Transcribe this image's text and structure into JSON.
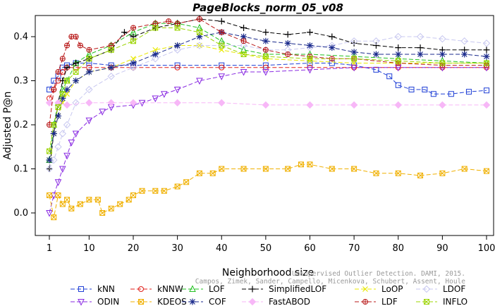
{
  "chart_data": {
    "type": "line",
    "title": "PageBlocks_norm_05_v08",
    "xlabel": "Neighborhood size",
    "ylabel": "Adjusted P@n",
    "xlim": [
      1,
      100
    ],
    "ylim": [
      -0.05,
      0.45
    ],
    "xticks": [
      1,
      10,
      20,
      30,
      40,
      50,
      60,
      70,
      80,
      90,
      100
    ],
    "yticks": [
      0.0,
      0.1,
      0.2,
      0.3,
      0.4
    ],
    "ytick_labels": [
      "0.0",
      "0.1",
      "0.2",
      "0.3",
      "0.4"
    ],
    "grid": false,
    "legend_position": "bottom",
    "watermark": [
      "Campos, Zimek, Sander, Campello, Micenkova, Schubert, Assent, Houle",
      "Unsupervised Outlier Detection. DAMI, 2015."
    ],
    "series": [
      {
        "name": "kNN",
        "color": "#1f3fd6",
        "marker": "square",
        "dash": "6,3",
        "points": [
          [
            1,
            0.28
          ],
          [
            2,
            0.3
          ],
          [
            3,
            0.31
          ],
          [
            4,
            0.33
          ],
          [
            5,
            0.335
          ],
          [
            7,
            0.34
          ],
          [
            10,
            0.34
          ],
          [
            15,
            0.335
          ],
          [
            20,
            0.335
          ],
          [
            30,
            0.335
          ],
          [
            40,
            0.335
          ],
          [
            50,
            0.335
          ],
          [
            60,
            0.34
          ],
          [
            65,
            0.34
          ],
          [
            70,
            0.335
          ],
          [
            75,
            0.325
          ],
          [
            78,
            0.31
          ],
          [
            80,
            0.29
          ],
          [
            83,
            0.28
          ],
          [
            86,
            0.28
          ],
          [
            88,
            0.27
          ],
          [
            92,
            0.27
          ],
          [
            96,
            0.275
          ],
          [
            100,
            0.278
          ]
        ]
      },
      {
        "name": "kNNW",
        "color": "#e0201b",
        "marker": "circle",
        "dash": "6,3",
        "points": [
          [
            1,
            0.26
          ],
          [
            2,
            0.28
          ],
          [
            3,
            0.3
          ],
          [
            4,
            0.32
          ],
          [
            5,
            0.33
          ],
          [
            7,
            0.33
          ],
          [
            10,
            0.33
          ],
          [
            15,
            0.33
          ],
          [
            20,
            0.33
          ],
          [
            30,
            0.33
          ],
          [
            40,
            0.33
          ],
          [
            50,
            0.33
          ],
          [
            60,
            0.33
          ],
          [
            70,
            0.33
          ],
          [
            80,
            0.33
          ],
          [
            90,
            0.33
          ],
          [
            100,
            0.33
          ]
        ]
      },
      {
        "name": "LOF",
        "color": "#22c021",
        "marker": "triangle-up",
        "dash": "6,3",
        "points": [
          [
            1,
            0.12
          ],
          [
            2,
            0.2
          ],
          [
            3,
            0.25
          ],
          [
            4,
            0.28
          ],
          [
            5,
            0.3
          ],
          [
            7,
            0.34
          ],
          [
            10,
            0.36
          ],
          [
            15,
            0.38
          ],
          [
            20,
            0.41
          ],
          [
            25,
            0.43
          ],
          [
            30,
            0.43
          ],
          [
            35,
            0.42
          ],
          [
            40,
            0.39
          ],
          [
            45,
            0.37
          ],
          [
            50,
            0.36
          ],
          [
            60,
            0.36
          ],
          [
            70,
            0.355
          ],
          [
            80,
            0.35
          ],
          [
            90,
            0.345
          ],
          [
            100,
            0.34
          ]
        ]
      },
      {
        "name": "SimplifiedLOF",
        "color": "#000000",
        "marker": "plus",
        "dash": "6,3",
        "points": [
          [
            1,
            0.1
          ],
          [
            2,
            0.18
          ],
          [
            3,
            0.25
          ],
          [
            4,
            0.3
          ],
          [
            5,
            0.33
          ],
          [
            7,
            0.34
          ],
          [
            10,
            0.35
          ],
          [
            15,
            0.37
          ],
          [
            18,
            0.41
          ],
          [
            20,
            0.4
          ],
          [
            25,
            0.42
          ],
          [
            30,
            0.43
          ],
          [
            35,
            0.44
          ],
          [
            40,
            0.435
          ],
          [
            45,
            0.42
          ],
          [
            50,
            0.41
          ],
          [
            55,
            0.405
          ],
          [
            60,
            0.41
          ],
          [
            65,
            0.4
          ],
          [
            70,
            0.385
          ],
          [
            75,
            0.38
          ],
          [
            80,
            0.375
          ],
          [
            85,
            0.375
          ],
          [
            90,
            0.37
          ],
          [
            95,
            0.37
          ],
          [
            100,
            0.37
          ]
        ]
      },
      {
        "name": "LoOP",
        "color": "#e8e800",
        "marker": "x",
        "dash": "6,3",
        "points": [
          [
            1,
            0.12
          ],
          [
            2,
            0.18
          ],
          [
            3,
            0.22
          ],
          [
            4,
            0.25
          ],
          [
            5,
            0.27
          ],
          [
            7,
            0.3
          ],
          [
            10,
            0.32
          ],
          [
            15,
            0.33
          ],
          [
            20,
            0.35
          ],
          [
            25,
            0.37
          ],
          [
            30,
            0.38
          ],
          [
            35,
            0.38
          ],
          [
            40,
            0.37
          ],
          [
            45,
            0.36
          ],
          [
            50,
            0.35
          ],
          [
            60,
            0.345
          ],
          [
            70,
            0.34
          ],
          [
            80,
            0.34
          ],
          [
            90,
            0.34
          ],
          [
            100,
            0.34
          ]
        ]
      },
      {
        "name": "LDOF",
        "color": "#c8c8f0",
        "marker": "diamond",
        "dash": "6,3",
        "points": [
          [
            1,
            0.1
          ],
          [
            2,
            0.12
          ],
          [
            3,
            0.15
          ],
          [
            4,
            0.18
          ],
          [
            5,
            0.2
          ],
          [
            7,
            0.25
          ],
          [
            10,
            0.28
          ],
          [
            15,
            0.31
          ],
          [
            20,
            0.33
          ],
          [
            25,
            0.35
          ],
          [
            30,
            0.37
          ],
          [
            35,
            0.38
          ],
          [
            40,
            0.38
          ],
          [
            45,
            0.38
          ],
          [
            50,
            0.37
          ],
          [
            55,
            0.37
          ],
          [
            60,
            0.375
          ],
          [
            65,
            0.38
          ],
          [
            70,
            0.39
          ],
          [
            75,
            0.39
          ],
          [
            80,
            0.4
          ],
          [
            85,
            0.4
          ],
          [
            90,
            0.395
          ],
          [
            95,
            0.39
          ],
          [
            100,
            0.385
          ]
        ]
      },
      {
        "name": "ODIN",
        "color": "#8a2be2",
        "marker": "triangle-down",
        "dash": "6,3",
        "points": [
          [
            1,
            0.0
          ],
          [
            2,
            0.04
          ],
          [
            3,
            0.07
          ],
          [
            4,
            0.1
          ],
          [
            5,
            0.13
          ],
          [
            6,
            0.16
          ],
          [
            7,
            0.18
          ],
          [
            10,
            0.21
          ],
          [
            13,
            0.23
          ],
          [
            15,
            0.24
          ],
          [
            20,
            0.245
          ],
          [
            22,
            0.25
          ],
          [
            25,
            0.26
          ],
          [
            27,
            0.27
          ],
          [
            30,
            0.28
          ],
          [
            35,
            0.3
          ],
          [
            40,
            0.31
          ],
          [
            45,
            0.32
          ],
          [
            50,
            0.32
          ],
          [
            60,
            0.325
          ],
          [
            70,
            0.33
          ],
          [
            80,
            0.33
          ],
          [
            90,
            0.33
          ],
          [
            100,
            0.33
          ]
        ]
      },
      {
        "name": "KDEOS",
        "color": "#f0b000",
        "marker": "square-x",
        "dash": "6,3",
        "points": [
          [
            1,
            0.04
          ],
          [
            2,
            -0.01
          ],
          [
            3,
            0.04
          ],
          [
            4,
            0.02
          ],
          [
            5,
            0.03
          ],
          [
            6,
            0.01
          ],
          [
            8,
            0.02
          ],
          [
            10,
            0.03
          ],
          [
            12,
            0.03
          ],
          [
            13,
            0.0
          ],
          [
            15,
            0.01
          ],
          [
            17,
            0.02
          ],
          [
            19,
            0.03
          ],
          [
            20,
            0.04
          ],
          [
            22,
            0.05
          ],
          [
            25,
            0.05
          ],
          [
            27,
            0.05
          ],
          [
            30,
            0.06
          ],
          [
            32,
            0.07
          ],
          [
            35,
            0.09
          ],
          [
            38,
            0.09
          ],
          [
            40,
            0.1
          ],
          [
            45,
            0.1
          ],
          [
            50,
            0.1
          ],
          [
            55,
            0.1
          ],
          [
            58,
            0.11
          ],
          [
            60,
            0.11
          ],
          [
            65,
            0.1
          ],
          [
            70,
            0.1
          ],
          [
            75,
            0.09
          ],
          [
            80,
            0.09
          ],
          [
            85,
            0.085
          ],
          [
            90,
            0.09
          ],
          [
            95,
            0.1
          ],
          [
            100,
            0.095
          ]
        ]
      },
      {
        "name": "COF",
        "color": "#1a2a8c",
        "marker": "asterisk",
        "dash": "6,3",
        "points": [
          [
            1,
            0.12
          ],
          [
            2,
            0.18
          ],
          [
            3,
            0.22
          ],
          [
            4,
            0.26
          ],
          [
            5,
            0.28
          ],
          [
            7,
            0.3
          ],
          [
            10,
            0.32
          ],
          [
            15,
            0.33
          ],
          [
            20,
            0.34
          ],
          [
            25,
            0.36
          ],
          [
            30,
            0.38
          ],
          [
            35,
            0.4
          ],
          [
            40,
            0.41
          ],
          [
            45,
            0.4
          ],
          [
            50,
            0.39
          ],
          [
            55,
            0.385
          ],
          [
            60,
            0.38
          ],
          [
            65,
            0.375
          ],
          [
            70,
            0.365
          ],
          [
            75,
            0.36
          ],
          [
            80,
            0.36
          ],
          [
            85,
            0.36
          ],
          [
            90,
            0.36
          ],
          [
            95,
            0.36
          ],
          [
            100,
            0.355
          ]
        ]
      },
      {
        "name": "FastABOD",
        "color": "#f7b7f7",
        "marker": "diamond-filled",
        "dash": "6,3",
        "points": [
          [
            1,
            0.25
          ],
          [
            3,
            0.25
          ],
          [
            5,
            0.245
          ],
          [
            10,
            0.25
          ],
          [
            15,
            0.25
          ],
          [
            20,
            0.25
          ],
          [
            30,
            0.25
          ],
          [
            40,
            0.25
          ],
          [
            50,
            0.245
          ],
          [
            60,
            0.245
          ],
          [
            70,
            0.245
          ],
          [
            80,
            0.245
          ],
          [
            90,
            0.245
          ],
          [
            100,
            0.245
          ]
        ]
      },
      {
        "name": "LDF",
        "color": "#b81818",
        "marker": "circle-plus",
        "dash": "6,3",
        "points": [
          [
            1,
            0.2
          ],
          [
            2,
            0.28
          ],
          [
            3,
            0.32
          ],
          [
            4,
            0.35
          ],
          [
            5,
            0.38
          ],
          [
            6,
            0.4
          ],
          [
            7,
            0.4
          ],
          [
            8,
            0.38
          ],
          [
            10,
            0.37
          ],
          [
            15,
            0.38
          ],
          [
            20,
            0.42
          ],
          [
            25,
            0.43
          ],
          [
            28,
            0.435
          ],
          [
            30,
            0.43
          ],
          [
            35,
            0.44
          ],
          [
            40,
            0.41
          ],
          [
            45,
            0.39
          ],
          [
            50,
            0.37
          ],
          [
            55,
            0.36
          ],
          [
            60,
            0.355
          ],
          [
            65,
            0.35
          ],
          [
            70,
            0.35
          ],
          [
            80,
            0.34
          ],
          [
            90,
            0.335
          ],
          [
            100,
            0.335
          ]
        ]
      },
      {
        "name": "INFLO",
        "color": "#9bd400",
        "marker": "square-x-green",
        "dash": "6,3",
        "points": [
          [
            1,
            0.14
          ],
          [
            2,
            0.2
          ],
          [
            3,
            0.24
          ],
          [
            4,
            0.27
          ],
          [
            5,
            0.3
          ],
          [
            7,
            0.32
          ],
          [
            10,
            0.35
          ],
          [
            15,
            0.37
          ],
          [
            20,
            0.39
          ],
          [
            25,
            0.42
          ],
          [
            30,
            0.42
          ],
          [
            35,
            0.41
          ],
          [
            40,
            0.38
          ],
          [
            45,
            0.36
          ],
          [
            50,
            0.355
          ],
          [
            60,
            0.35
          ],
          [
            70,
            0.35
          ],
          [
            80,
            0.345
          ],
          [
            90,
            0.34
          ],
          [
            100,
            0.34
          ]
        ]
      }
    ]
  }
}
